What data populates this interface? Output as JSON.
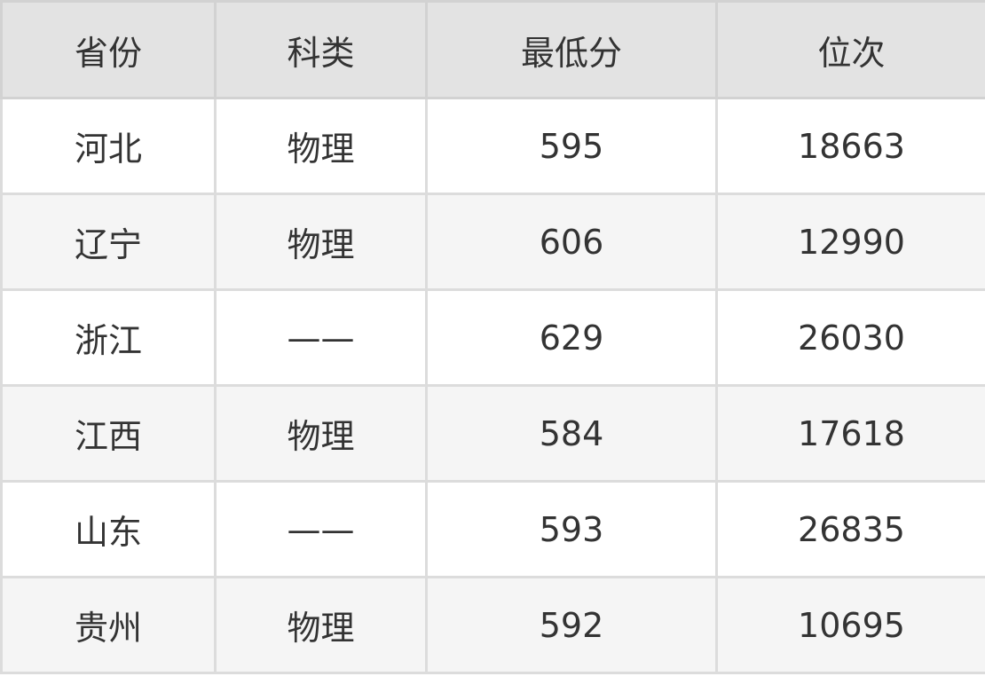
{
  "table": {
    "headers": [
      "省份",
      "科类",
      "最低分",
      "位次"
    ],
    "rows": [
      [
        "河北",
        "物理",
        "595",
        "18663"
      ],
      [
        "辽宁",
        "物理",
        "606",
        "12990"
      ],
      [
        "浙江",
        "——",
        "629",
        "26030"
      ],
      [
        "江西",
        "物理",
        "584",
        "17618"
      ],
      [
        "山东",
        "——",
        "593",
        "26835"
      ],
      [
        "贵州",
        "物理",
        "592",
        "10695"
      ]
    ]
  }
}
